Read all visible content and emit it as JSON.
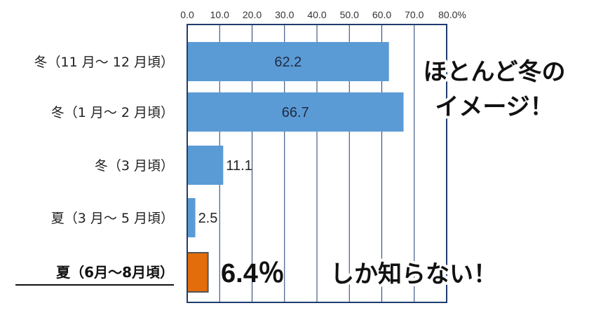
{
  "chart_data": {
    "type": "bar",
    "orientation": "horizontal",
    "categories": [
      "冬（11 月～ 12 月頃）",
      "冬（1 月～ 2 月頃）",
      "冬（3 月頃）",
      "夏（3 月～ 5 月頃）",
      "夏（6月～8月頃）"
    ],
    "values": [
      62.2,
      66.7,
      11.1,
      2.5,
      6.4
    ],
    "value_labels": [
      "62.2",
      "66.7",
      "11.1",
      "2.5",
      "6.4％"
    ],
    "highlight_index": 4,
    "xlim": [
      0,
      80
    ],
    "x_ticks": [
      "0.0",
      "10.0",
      "20.0",
      "30.0",
      "40.0",
      "50.0",
      "60.0",
      "70.0",
      "80.0%"
    ],
    "grid": true,
    "colors": {
      "bar": "#5b9bd5",
      "highlight": "#e46c0a",
      "grid": "#1f3c6e"
    },
    "annotations": [
      "ほとんど冬の",
      "イメージ！",
      "しか知らない！"
    ]
  }
}
